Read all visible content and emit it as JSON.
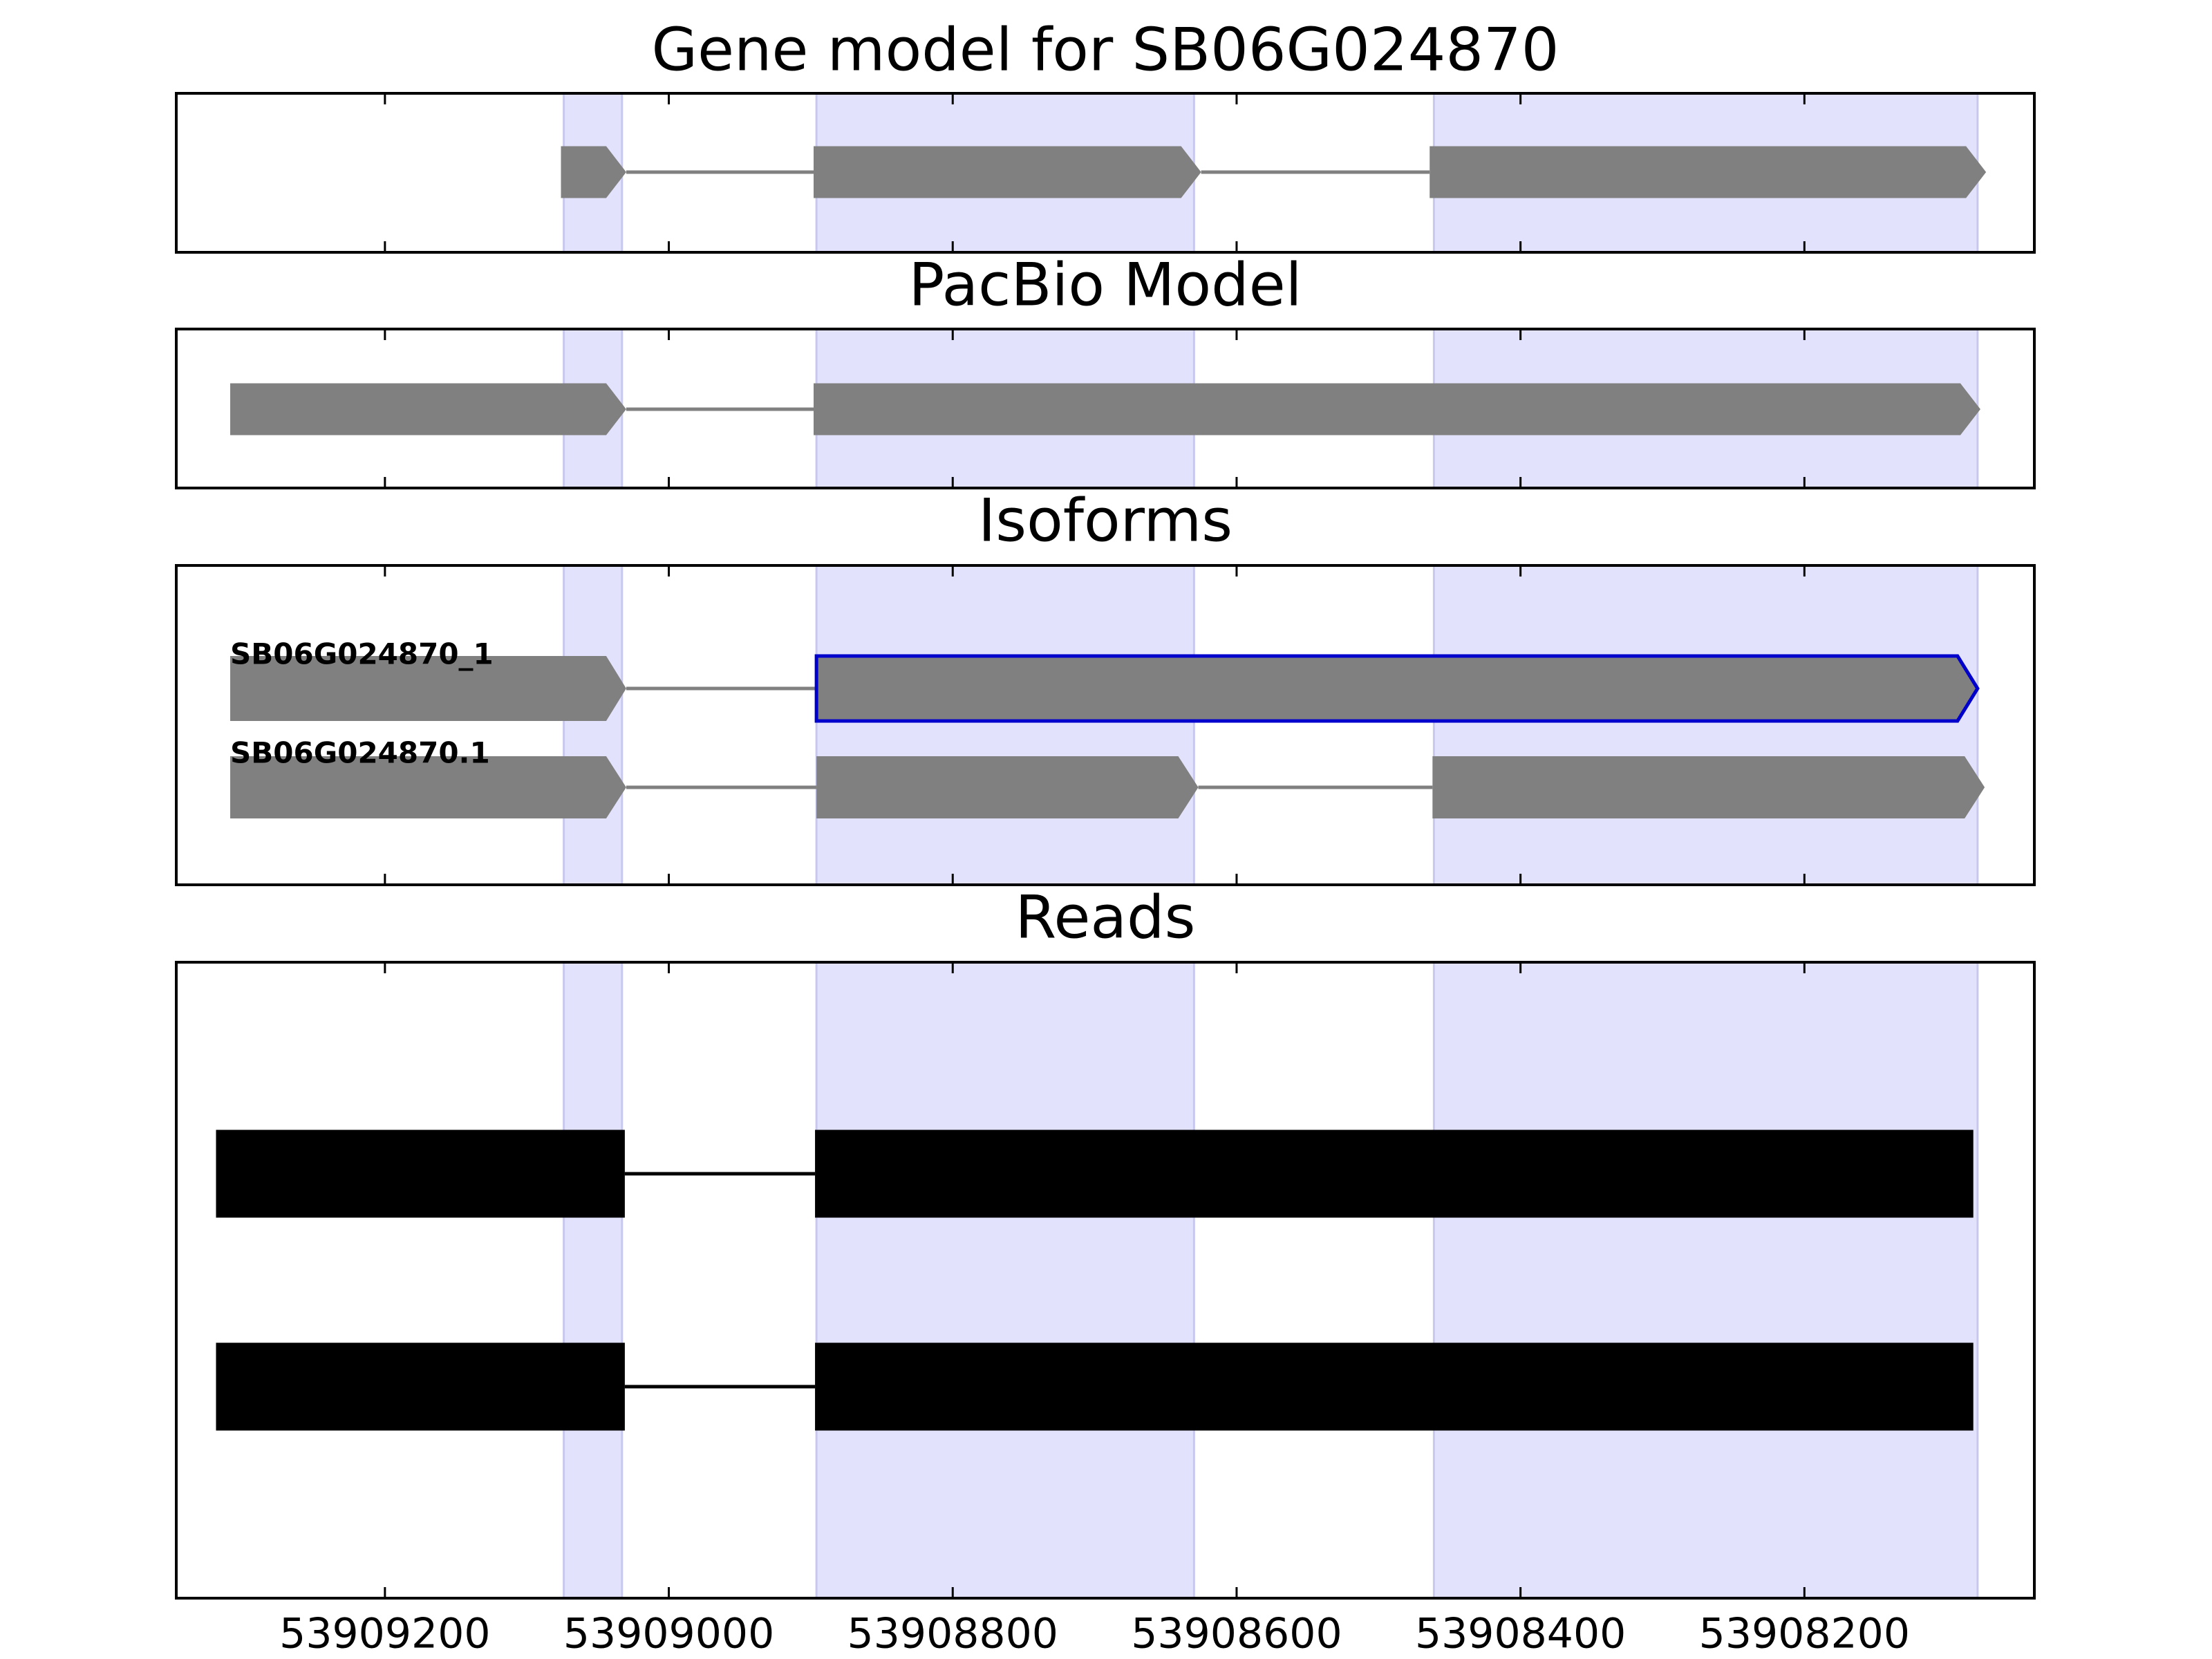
{
  "chart_data": [
    {
      "type": "gene-track",
      "title": "Gene model for SB06G024870",
      "xlim": [
        53909347,
        53908038
      ],
      "highlight_regions": [
        [
          53909074,
          53909033
        ],
        [
          53908896,
          53908630
        ],
        [
          53908461,
          53908078
        ]
      ],
      "highlight_color": "#e2e2fc",
      "color": "#808080",
      "arrows": true,
      "transcripts": [
        {
          "exons": [
            [
              53909076,
              53909030
            ],
            [
              53908898,
              53908625
            ],
            [
              53908464,
              53908072
            ]
          ]
        }
      ]
    },
    {
      "type": "gene-track",
      "title": "PacBio Model",
      "xlim": [
        53909347,
        53908038
      ],
      "highlight_regions": [
        [
          53909074,
          53909033
        ],
        [
          53908896,
          53908630
        ],
        [
          53908461,
          53908078
        ]
      ],
      "highlight_color": "#e2e2fc",
      "color": "#808080",
      "arrows": true,
      "transcripts": [
        {
          "exons": [
            [
              53909309,
              53909030
            ],
            [
              53908898,
              53908076
            ]
          ]
        }
      ]
    },
    {
      "type": "gene-track",
      "title": "Isoforms",
      "xlim": [
        53909347,
        53908038
      ],
      "highlight_regions": [
        [
          53909074,
          53909033
        ],
        [
          53908896,
          53908630
        ],
        [
          53908461,
          53908078
        ]
      ],
      "highlight_color": "#e2e2fc",
      "color": "#808080",
      "arrows": true,
      "outline_color": "#0000cc",
      "transcripts": [
        {
          "name": "SB06G024870_1",
          "exons": [
            [
              53909309,
              53909030
            ],
            [
              53908896,
              53908078
            ]
          ],
          "outlined_exon": 1
        },
        {
          "name": "SB06G024870.1",
          "exons": [
            [
              53909309,
              53909030
            ],
            [
              53908896,
              53908627
            ],
            [
              53908462,
              53908073
            ]
          ]
        }
      ]
    },
    {
      "type": "gene-track",
      "title": "Reads",
      "xlim": [
        53909347,
        53908038
      ],
      "xticks": [
        53909200,
        53909000,
        53908800,
        53908600,
        53908400,
        53908200
      ],
      "highlight_regions": [
        [
          53909074,
          53909033
        ],
        [
          53908896,
          53908630
        ],
        [
          53908461,
          53908078
        ]
      ],
      "highlight_color": "#e2e2fc",
      "color": "#000000",
      "arrows": false,
      "transcripts": [
        {
          "exons": [
            [
              53909319,
              53909031
            ],
            [
              53908897,
              53908081
            ]
          ]
        },
        {
          "exons": [
            [
              53909319,
              53909031
            ],
            [
              53908897,
              53908081
            ]
          ]
        }
      ]
    }
  ]
}
